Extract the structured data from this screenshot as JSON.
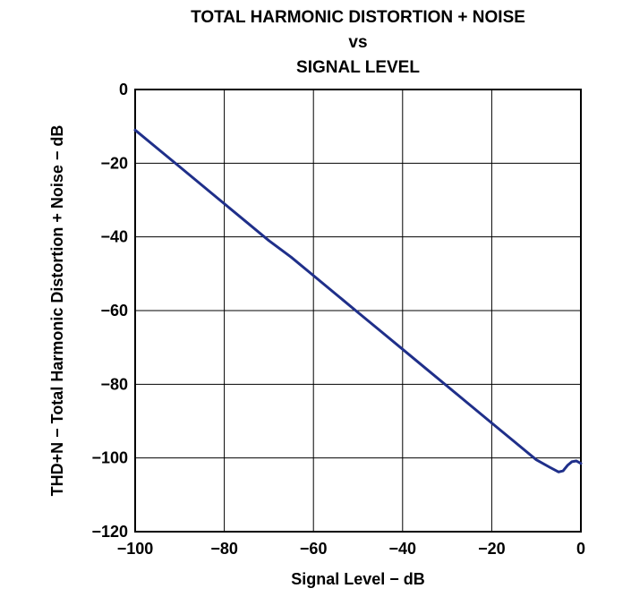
{
  "chart_data": {
    "type": "line",
    "title_lines": [
      "TOTAL HARMONIC DISTORTION + NOISE",
      "vs",
      "SIGNAL LEVEL"
    ],
    "xlabel": "Signal Level − dB",
    "ylabel": "THD+N − Total Harmonic Distortion + Noise − dB",
    "xlim": [
      -100,
      0
    ],
    "ylim": [
      -120,
      0
    ],
    "xticks": [
      -100,
      -80,
      -60,
      -40,
      -20,
      0
    ],
    "yticks": [
      0,
      -20,
      -40,
      -60,
      -80,
      -100,
      -120
    ],
    "xtick_labels": [
      "−100",
      "−80",
      "−60",
      "−40",
      "−20",
      "0"
    ],
    "ytick_labels": [
      "0",
      "−20",
      "−40",
      "−60",
      "−80",
      "−100",
      "−120"
    ],
    "grid": true,
    "series": [
      {
        "name": "THD+N",
        "color": "#1f2f8a",
        "x": [
          -100,
          -95,
          -90,
          -85,
          -80,
          -75,
          -70,
          -65,
          -60,
          -55,
          -50,
          -45,
          -40,
          -35,
          -30,
          -25,
          -20,
          -15,
          -10,
          -7,
          -5,
          -4,
          -3,
          -2,
          -1,
          0
        ],
        "y": [
          -11,
          -16,
          -21,
          -26,
          -31,
          -36,
          -41,
          -45.5,
          -50.5,
          -55.5,
          -60.5,
          -65.5,
          -70.5,
          -75.5,
          -80.5,
          -85.5,
          -90.5,
          -95.5,
          -100.5,
          -102.5,
          -103.8,
          -103.5,
          -102,
          -101,
          -100.8,
          -101.5
        ]
      }
    ]
  }
}
